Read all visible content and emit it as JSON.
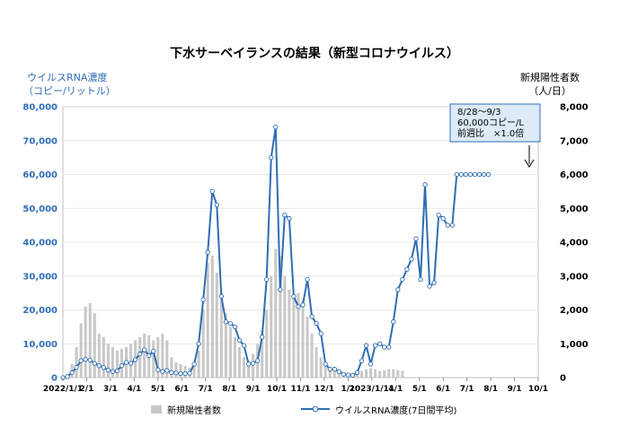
{
  "chart_data": {
    "type": "bar+line",
    "title": "下水サーベイランスの結果（新型コロナウイルス）",
    "ylabel_left": [
      "ウイルスRNA濃度",
      "（コピー/リットル）"
    ],
    "ylabel_right": [
      "新規陽性者数",
      "（人/日）"
    ],
    "ylim_left": [
      0,
      80000
    ],
    "ylim_right": [
      0,
      8000
    ],
    "yticks_left": [
      "0",
      "10,000",
      "20,000",
      "30,000",
      "40,000",
      "50,000",
      "60,000",
      "70,000",
      "80,000"
    ],
    "yticks_right": [
      "0",
      "1,000",
      "2,000",
      "3,000",
      "4,000",
      "5,000",
      "6,000",
      "7,000",
      "8,000"
    ],
    "x_tick_labels": [
      "2022/1/1",
      "2/1",
      "3/1",
      "4/1",
      "5/1",
      "6/1",
      "7/1",
      "8/1",
      "9/1",
      "10/1",
      "11/1",
      "12/1",
      "1/1",
      "2023/1/11",
      "4/1",
      "5/1",
      "6/1",
      "7/1",
      "8/1",
      "9/1",
      "10/1"
    ],
    "x_start_month_index": 0,
    "x_end_month_index": 21,
    "legend": [
      {
        "label": "新規陽性者数",
        "type": "bar",
        "color": "#c8c8c8"
      },
      {
        "label": "ウイルスRNA濃度(7日間平均)",
        "type": "line",
        "color": "#2e6db4"
      }
    ],
    "annotation": {
      "lines": [
        "8/28～9/3",
        "60,000コピー/L",
        "前週比　×1.0倍"
      ]
    },
    "series_cases": {
      "name": "新規陽性者数",
      "x": [
        0.0,
        0.2,
        0.4,
        0.6,
        0.8,
        1.0,
        1.2,
        1.4,
        1.6,
        1.8,
        2.0,
        2.2,
        2.4,
        2.6,
        2.8,
        3.0,
        3.2,
        3.4,
        3.6,
        3.8,
        4.0,
        4.2,
        4.4,
        4.6,
        4.8,
        5.0,
        5.2,
        5.4,
        5.6,
        5.8,
        6.0,
        6.2,
        6.4,
        6.6,
        6.8,
        7.0,
        7.2,
        7.4,
        7.6,
        7.8,
        8.0,
        8.2,
        8.4,
        8.6,
        8.8,
        9.0,
        9.2,
        9.4,
        9.6,
        9.8,
        10.0,
        10.2,
        10.4,
        10.6,
        10.8,
        11.0,
        11.2,
        11.4,
        11.6,
        11.8,
        12.0,
        12.2,
        12.4,
        12.6,
        12.8,
        13.0,
        13.2,
        13.4,
        13.6,
        13.8,
        14.0,
        14.2,
        14.4,
        14.6,
        14.8,
        15.0,
        15.2,
        15.4,
        15.6
      ],
      "values": [
        20,
        100,
        400,
        900,
        1600,
        2100,
        2200,
        1900,
        1300,
        1200,
        1000,
        900,
        800,
        850,
        900,
        1000,
        1100,
        1200,
        1300,
        1250,
        1100,
        1200,
        1300,
        1100,
        600,
        450,
        400,
        350,
        300,
        400,
        800,
        2000,
        3400,
        3600,
        3100,
        2500,
        1900,
        1500,
        1200,
        900,
        600,
        500,
        700,
        1000,
        1400,
        2000,
        3000,
        3800,
        3600,
        3000,
        2600,
        2400,
        2500,
        2300,
        1800,
        1300,
        900,
        600,
        400,
        250,
        180,
        150,
        120,
        110,
        100,
        150,
        200,
        250,
        280,
        250,
        200,
        220,
        250,
        250,
        220,
        200,
        0,
        0,
        0
      ]
    },
    "series_rna": {
      "name": "ウイルスRNA濃度(7日間平均)",
      "x": [
        0.0,
        0.2,
        0.4,
        0.6,
        0.8,
        1.0,
        1.2,
        1.4,
        1.6,
        1.8,
        2.0,
        2.2,
        2.4,
        2.6,
        2.8,
        3.0,
        3.2,
        3.4,
        3.6,
        3.8,
        4.0,
        4.2,
        4.4,
        4.6,
        4.8,
        5.0,
        5.2,
        5.4,
        5.6,
        5.8,
        6.0,
        6.2,
        6.4,
        6.6,
        6.8,
        7.0,
        7.2,
        7.4,
        7.6,
        7.8,
        8.0,
        8.2,
        8.4,
        8.6,
        8.8,
        9.0,
        9.2,
        9.4,
        9.6,
        9.8,
        10.0,
        10.2,
        10.4,
        10.6,
        10.8,
        11.0,
        11.2,
        11.4,
        11.6,
        11.8,
        12.0,
        12.2,
        12.4,
        12.6,
        12.8,
        13.0,
        13.2,
        13.4,
        13.6,
        13.8,
        14.0,
        14.2,
        14.4,
        14.6,
        14.8,
        15.0,
        15.2,
        15.4,
        15.6,
        15.8,
        16.0,
        16.2,
        16.4,
        16.6,
        16.8,
        17.0,
        17.2,
        17.4,
        17.6,
        17.8,
        18.0,
        18.2,
        18.4,
        18.6,
        18.8
      ],
      "values": [
        0,
        300,
        1500,
        3000,
        5000,
        5400,
        5200,
        4200,
        3500,
        3000,
        2200,
        1800,
        2000,
        3500,
        4500,
        4200,
        5300,
        7000,
        8200,
        6500,
        7800,
        2300,
        1800,
        2100,
        1500,
        1400,
        1200,
        1200,
        1300,
        4000,
        10000,
        23000,
        37000,
        55000,
        51000,
        24000,
        16500,
        16000,
        15000,
        11000,
        9500,
        4000,
        4200,
        5000,
        12000,
        29000,
        65000,
        74000,
        26000,
        48000,
        47000,
        24000,
        21000,
        21500,
        29000,
        18000,
        16000,
        13000,
        4000,
        2500,
        2500,
        1800,
        1000,
        800,
        700,
        1500,
        5000,
        9500,
        4000,
        9500,
        10000,
        9000,
        9000,
        16500,
        26000,
        29000,
        32000,
        35000,
        41000,
        29000,
        57000,
        27000,
        28000,
        48000,
        47000,
        45000,
        45000,
        60000,
        60000,
        60000,
        60000,
        60000,
        60000,
        60000,
        60000
      ]
    }
  }
}
